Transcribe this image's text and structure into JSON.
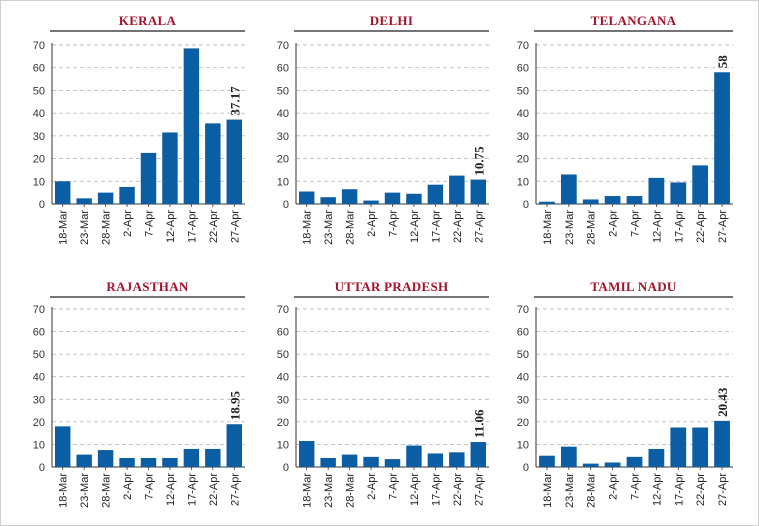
{
  "style": {
    "bar_color": "#0b5ea3",
    "title_color": "#a4122a",
    "grid_color": "#bbbbbb",
    "frame_color": "#cfcfcf"
  },
  "chart_data": [
    {
      "type": "bar",
      "title": "KERALA",
      "categories": [
        "18-Mar",
        "23-Mar",
        "28-Mar",
        "2-Apr",
        "7-Apr",
        "12-Apr",
        "17-Apr",
        "22-Apr",
        "27-Apr"
      ],
      "values": [
        10,
        2.5,
        5,
        7.5,
        22.5,
        31.5,
        68.5,
        35.5,
        37.17
      ],
      "yticks": [
        "0",
        "10",
        "20",
        "30",
        "40",
        "50",
        "60",
        "70"
      ],
      "ylim": [
        0,
        70
      ],
      "data_labels": [
        {
          "index": 8,
          "text": "37.17"
        }
      ],
      "grid": true
    },
    {
      "type": "bar",
      "title": "DELHI",
      "categories": [
        "18-Mar",
        "23-Mar",
        "28-Mar",
        "2-Apr",
        "7-Apr",
        "12-Apr",
        "17-Apr",
        "22-Apr",
        "27-Apr"
      ],
      "values": [
        5.5,
        3,
        6.5,
        1.5,
        5,
        4.5,
        8.5,
        12.5,
        10.75
      ],
      "yticks": [
        "0",
        "10",
        "20",
        "30",
        "40",
        "50",
        "60",
        "70"
      ],
      "ylim": [
        0,
        70
      ],
      "data_labels": [
        {
          "index": 8,
          "text": "10.75"
        }
      ],
      "grid": true
    },
    {
      "type": "bar",
      "title": "TELANGANA",
      "categories": [
        "18-Mar",
        "23-Mar",
        "28-Mar",
        "2-Apr",
        "7-Apr",
        "12-Apr",
        "17-Apr",
        "22-Apr",
        "27-Apr"
      ],
      "values": [
        1,
        13,
        2,
        3.5,
        3.5,
        11.5,
        9.5,
        17,
        58
      ],
      "yticks": [
        "0",
        "10",
        "20",
        "30",
        "40",
        "50",
        "60",
        "70"
      ],
      "ylim": [
        0,
        70
      ],
      "data_labels": [
        {
          "index": 8,
          "text": "58"
        }
      ],
      "grid": true
    },
    {
      "type": "bar",
      "title": "RAJASTHAN",
      "categories": [
        "18-Mar",
        "23-Mar",
        "28-Mar",
        "2-Apr",
        "7-Apr",
        "12-Apr",
        "17-Apr",
        "22-Apr",
        "27-Apr"
      ],
      "values": [
        18,
        5.5,
        7.5,
        4,
        4,
        4,
        8,
        8,
        18.95
      ],
      "yticks": [
        "0",
        "10",
        "20",
        "30",
        "40",
        "50",
        "60",
        "70"
      ],
      "ylim": [
        0,
        70
      ],
      "data_labels": [
        {
          "index": 8,
          "text": "18.95"
        }
      ],
      "grid": true
    },
    {
      "type": "bar",
      "title": "UTTAR PRADESH",
      "categories": [
        "18-Mar",
        "23-Mar",
        "28-Mar",
        "2-Apr",
        "7-Apr",
        "12-Apr",
        "17-Apr",
        "22-Apr",
        "27-Apr"
      ],
      "values": [
        11.5,
        4,
        5.5,
        4.5,
        3.5,
        9.5,
        6,
        6.5,
        11.06
      ],
      "yticks": [
        "0",
        "10",
        "20",
        "30",
        "40",
        "50",
        "60",
        "70"
      ],
      "ylim": [
        0,
        70
      ],
      "data_labels": [
        {
          "index": 8,
          "text": "11.06"
        }
      ],
      "grid": true
    },
    {
      "type": "bar",
      "title": "TAMIL NADU",
      "categories": [
        "18-Mar",
        "23-Mar",
        "28-Mar",
        "2-Apr",
        "7-Apr",
        "12-Apr",
        "17-Apr",
        "22-Apr",
        "27-Apr"
      ],
      "values": [
        5,
        9,
        1.5,
        2,
        4.5,
        8,
        17.5,
        17.5,
        20.43
      ],
      "yticks": [
        "0",
        "10",
        "20",
        "30",
        "40",
        "50",
        "60",
        "70"
      ],
      "ylim": [
        0,
        70
      ],
      "data_labels": [
        {
          "index": 8,
          "text": "20.43"
        }
      ],
      "grid": true
    }
  ]
}
